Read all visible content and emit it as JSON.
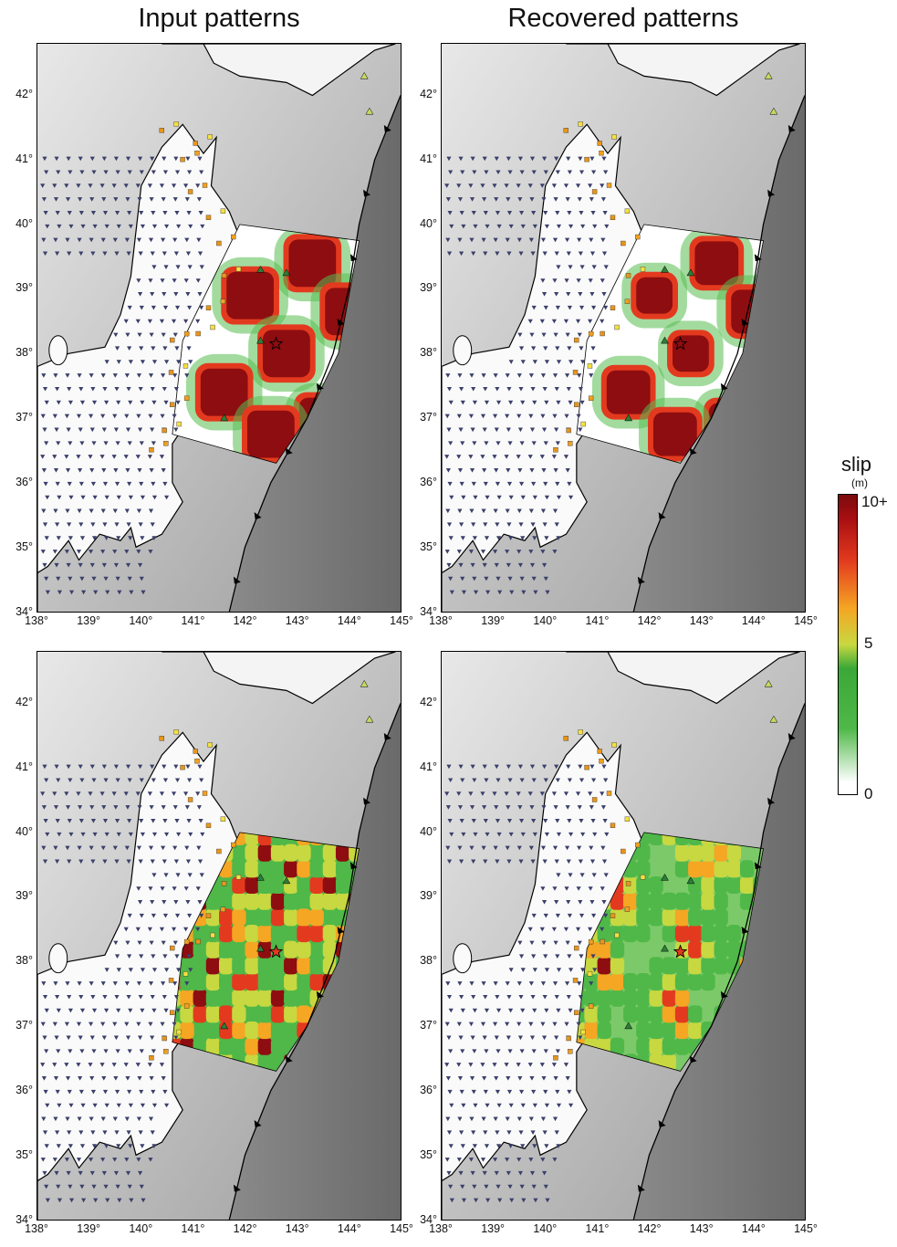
{
  "titles": {
    "left": "Input patterns",
    "right": "Recovered patterns"
  },
  "latitude_ticks": [
    "42°",
    "41°",
    "40°",
    "39°",
    "38°",
    "37°",
    "36°",
    "35°",
    "34°"
  ],
  "longitude_ticks": [
    "138°",
    "139°",
    "140°",
    "141°",
    "142°",
    "143°",
    "144°",
    "145°"
  ],
  "colorbar": {
    "title": "slip",
    "unit": "(m)",
    "labels": {
      "max": "10+",
      "mid": "5",
      "min": "0"
    }
  },
  "panels": [
    {
      "name": "input-checker-large",
      "row": 0,
      "col": 0,
      "pattern": "checker-large"
    },
    {
      "name": "recovered-checker-large",
      "row": 0,
      "col": 1,
      "pattern": "recovered-large"
    },
    {
      "name": "input-checker-small",
      "row": 1,
      "col": 0,
      "pattern": "checker-small"
    },
    {
      "name": "recovered-checker-small",
      "row": 1,
      "col": 1,
      "pattern": "recovered-small"
    }
  ]
}
